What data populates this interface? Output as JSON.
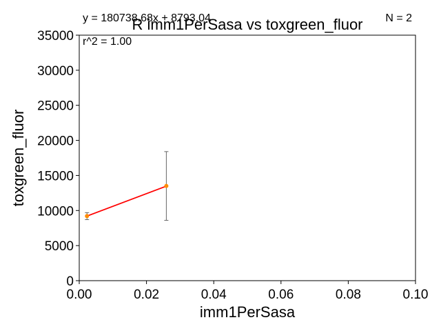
{
  "chart_data": {
    "type": "scatter",
    "title": "R imm1PerSasa vs toxgreen_fluor",
    "xlabel": "imm1PerSasa",
    "ylabel": "toxgreen_fluor",
    "xlim": [
      0,
      0.1
    ],
    "ylim": [
      0,
      35000
    ],
    "xticks": [
      0,
      0.02,
      0.04,
      0.06,
      0.08,
      0.1
    ],
    "xtick_labels": [
      "0.00",
      "0.02",
      "0.04",
      "0.06",
      "0.08",
      "0.10"
    ],
    "yticks": [
      0,
      5000,
      10000,
      15000,
      20000,
      25000,
      30000,
      35000
    ],
    "ytick_labels": [
      "0",
      "5000",
      "10000",
      "15000",
      "20000",
      "25000",
      "30000",
      "35000"
    ],
    "grid": false,
    "points": [
      {
        "x": 0.0023,
        "y": 9200,
        "err_low": 8700,
        "err_high": 9700
      },
      {
        "x": 0.0259,
        "y": 13500,
        "err_low": 8600,
        "err_high": 18400
      }
    ],
    "fit_line": {
      "x": [
        0.0023,
        0.0259
      ],
      "y": [
        9208,
        13474
      ],
      "color": "#ff0000"
    },
    "point_color": "#ff8c00",
    "errorbar_color": "#666666",
    "annotations": {
      "equation": "y = 180738.68x + 8793.04",
      "r_squared": "r^2 = 1.00",
      "n": "N = 2"
    }
  }
}
